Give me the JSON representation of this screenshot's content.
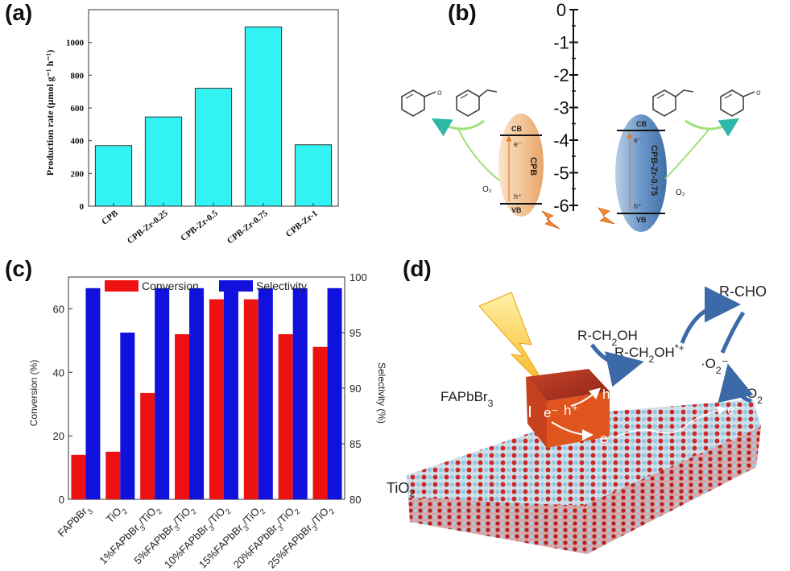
{
  "panels": {
    "a": {
      "label": "(a)"
    },
    "b": {
      "label": "(b)"
    },
    "c": {
      "label": "(c)"
    },
    "d": {
      "label": "(d)"
    }
  },
  "chart_data": [
    {
      "type": "bar",
      "panel": "a",
      "categories": [
        "CPB",
        "CPB-Zr-0.25",
        "CPB-Zr-0.5",
        "CPB-Zr-0.75",
        "CPB-Zr-1"
      ],
      "values": [
        370,
        545,
        720,
        1095,
        375
      ],
      "ylabel": "Production rate (μmol g⁻¹ h⁻¹)",
      "xlabel": "",
      "ylim": [
        0,
        1200
      ],
      "yticks": [
        0,
        200,
        400,
        600,
        800,
        1000
      ],
      "bar_color": "#33f2f2",
      "grid": false
    },
    {
      "type": "bar",
      "panel": "c",
      "categories": [
        "FAPbBr3",
        "TiO2",
        "1%FAPbBr3/TiO2",
        "5%FAPbBr3/TiO2",
        "10%FAPbBr3/TiO2",
        "15%FAPbBr3/TiO2",
        "20%FAPbBr3/TiO2",
        "25%FAPbBr3/TiO2"
      ],
      "series": [
        {
          "name": "Conversion",
          "axis": "left",
          "color": "#ee1111",
          "values": [
            14,
            15,
            33.5,
            52,
            63,
            63,
            52,
            48
          ]
        },
        {
          "name": "Selectivity",
          "axis": "right",
          "color": "#1111dd",
          "values": [
            99,
            95,
            99,
            99,
            99,
            99,
            99,
            99
          ]
        }
      ],
      "ylabel": "Conversion (%)",
      "y2label": "Selectivity (%)",
      "ylim": [
        0,
        70
      ],
      "y2lim": [
        80,
        100
      ],
      "yticks": [
        0,
        20,
        40,
        60
      ],
      "y2ticks": [
        80,
        85,
        90,
        95,
        100
      ],
      "legend": "top",
      "grid": false
    }
  ],
  "diagram_b": {
    "scale_ticks": [
      "0",
      "-1",
      "-2",
      "-3",
      "-4",
      "-5",
      "-6"
    ],
    "left_material": "CPB",
    "right_material": "CPB-Zr-0.75",
    "cb": "CB",
    "vb": "VB",
    "electron": "e⁻",
    "hole": "h⁺",
    "oxygen": "O₂",
    "cpb_color": "#f3c79a",
    "zr_color": "#6d97c9"
  },
  "diagram_d": {
    "perovskite": "FAPbBr3",
    "substrate": "TiO2",
    "alcohol": "R-CH2OH",
    "radical_cation": "R-CH2OH*+",
    "superoxide": "·O2⁻",
    "oxygen": "O2",
    "product": "R-CHO",
    "electron": "e⁻",
    "hole": "h⁺",
    "crystal_color": "#e0541e",
    "arrow_color": "#3c6aa8"
  }
}
